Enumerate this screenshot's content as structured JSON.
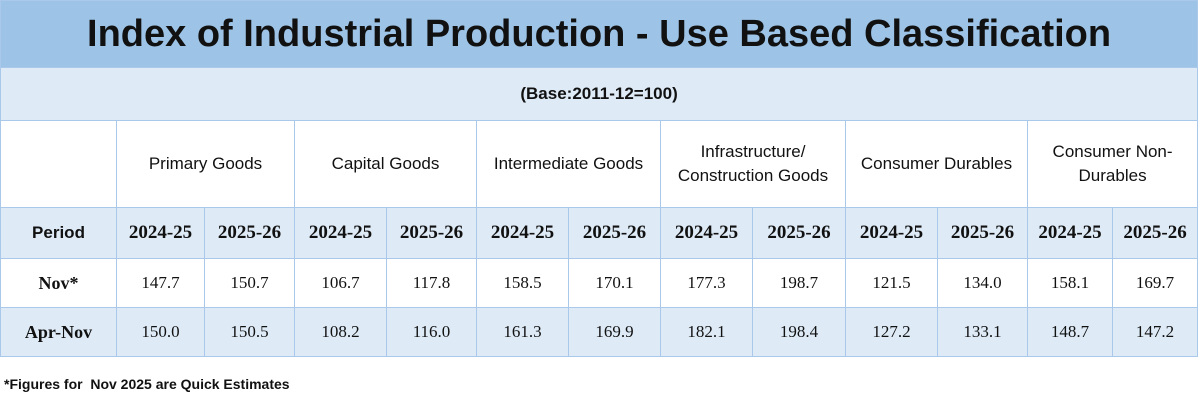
{
  "header": {
    "title": "Index of Industrial Production - Use Based Classification",
    "subtitle": "(Base:2011-12=100)"
  },
  "table": {
    "groups": [
      "Primary Goods",
      "Capital Goods",
      "Intermediate Goods",
      "Infrastructure/ Construction Goods",
      "Consumer Durables",
      "Consumer Non-Durables"
    ],
    "period_header": "Period",
    "year_headers": [
      "2024-25",
      "2025-26",
      "2024-25",
      "2025-26",
      "2024-25",
      "2025-26",
      "2024-25",
      "2025-26",
      "2024-25",
      "2025-26",
      "2024-25",
      "2025-26"
    ],
    "rows": [
      {
        "label": "Nov*",
        "values": [
          "147.7",
          "150.7",
          "106.7",
          "117.8",
          "158.5",
          "170.1",
          "177.3",
          "198.7",
          "121.5",
          "134.0",
          "158.1",
          "169.7"
        ]
      },
      {
        "label": "Apr-Nov",
        "values": [
          "150.0",
          "150.5",
          "108.2",
          "116.0",
          "161.3",
          "169.9",
          "182.1",
          "198.4",
          "127.2",
          "133.1",
          "148.7",
          "147.2"
        ]
      }
    ]
  },
  "footnote": "*Figures for  Nov 2025 are Quick Estimates"
}
